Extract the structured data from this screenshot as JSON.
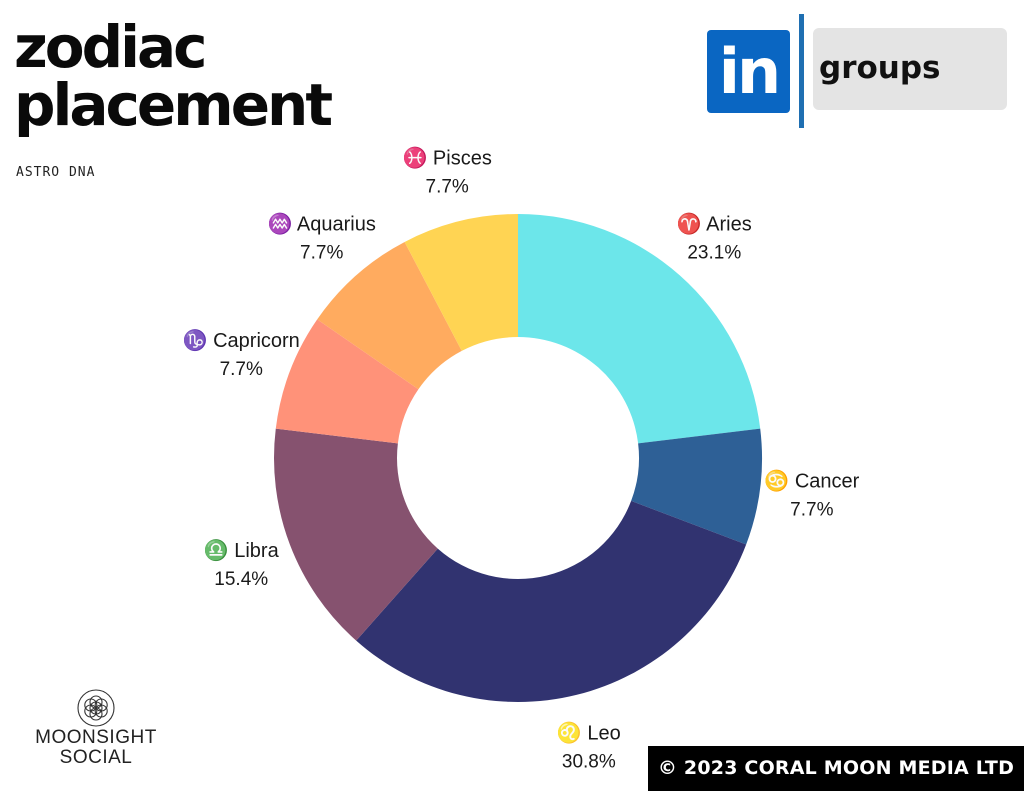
{
  "header": {
    "title_line1": "zodiac",
    "title_line2": "placement",
    "subtitle": "ASTRO DNA"
  },
  "badge": {
    "logo_text": "in",
    "label": "groups",
    "logo_color": "#0a66c2"
  },
  "brand": {
    "line1": "MOONSIGHT",
    "line2": "SOCIAL"
  },
  "footer": {
    "copyright": "© 2023 CORAL MOON MEDIA LTD"
  },
  "chart_data": {
    "type": "pie",
    "donut": true,
    "slices": [
      {
        "label": "♈ Aries",
        "value": 23.1,
        "pct_label": "23.1%",
        "color": "#6ce6ea"
      },
      {
        "label": "♋ Cancer",
        "value": 7.7,
        "pct_label": "7.7%",
        "color": "#2e6096"
      },
      {
        "label": "♌ Leo",
        "value": 30.8,
        "pct_label": "30.8%",
        "color": "#313370"
      },
      {
        "label": "♎ Libra",
        "value": 15.4,
        "pct_label": "15.4%",
        "color": "#86526f"
      },
      {
        "label": "♑ Capricorn",
        "value": 7.7,
        "pct_label": "7.7%",
        "color": "#ff9279"
      },
      {
        "label": "♒ Aquarius",
        "value": 7.7,
        "pct_label": "7.7%",
        "color": "#ffab5f"
      },
      {
        "label": "♓ Pisces",
        "value": 7.7,
        "pct_label": "7.7%",
        "color": "#ffd453"
      }
    ]
  }
}
